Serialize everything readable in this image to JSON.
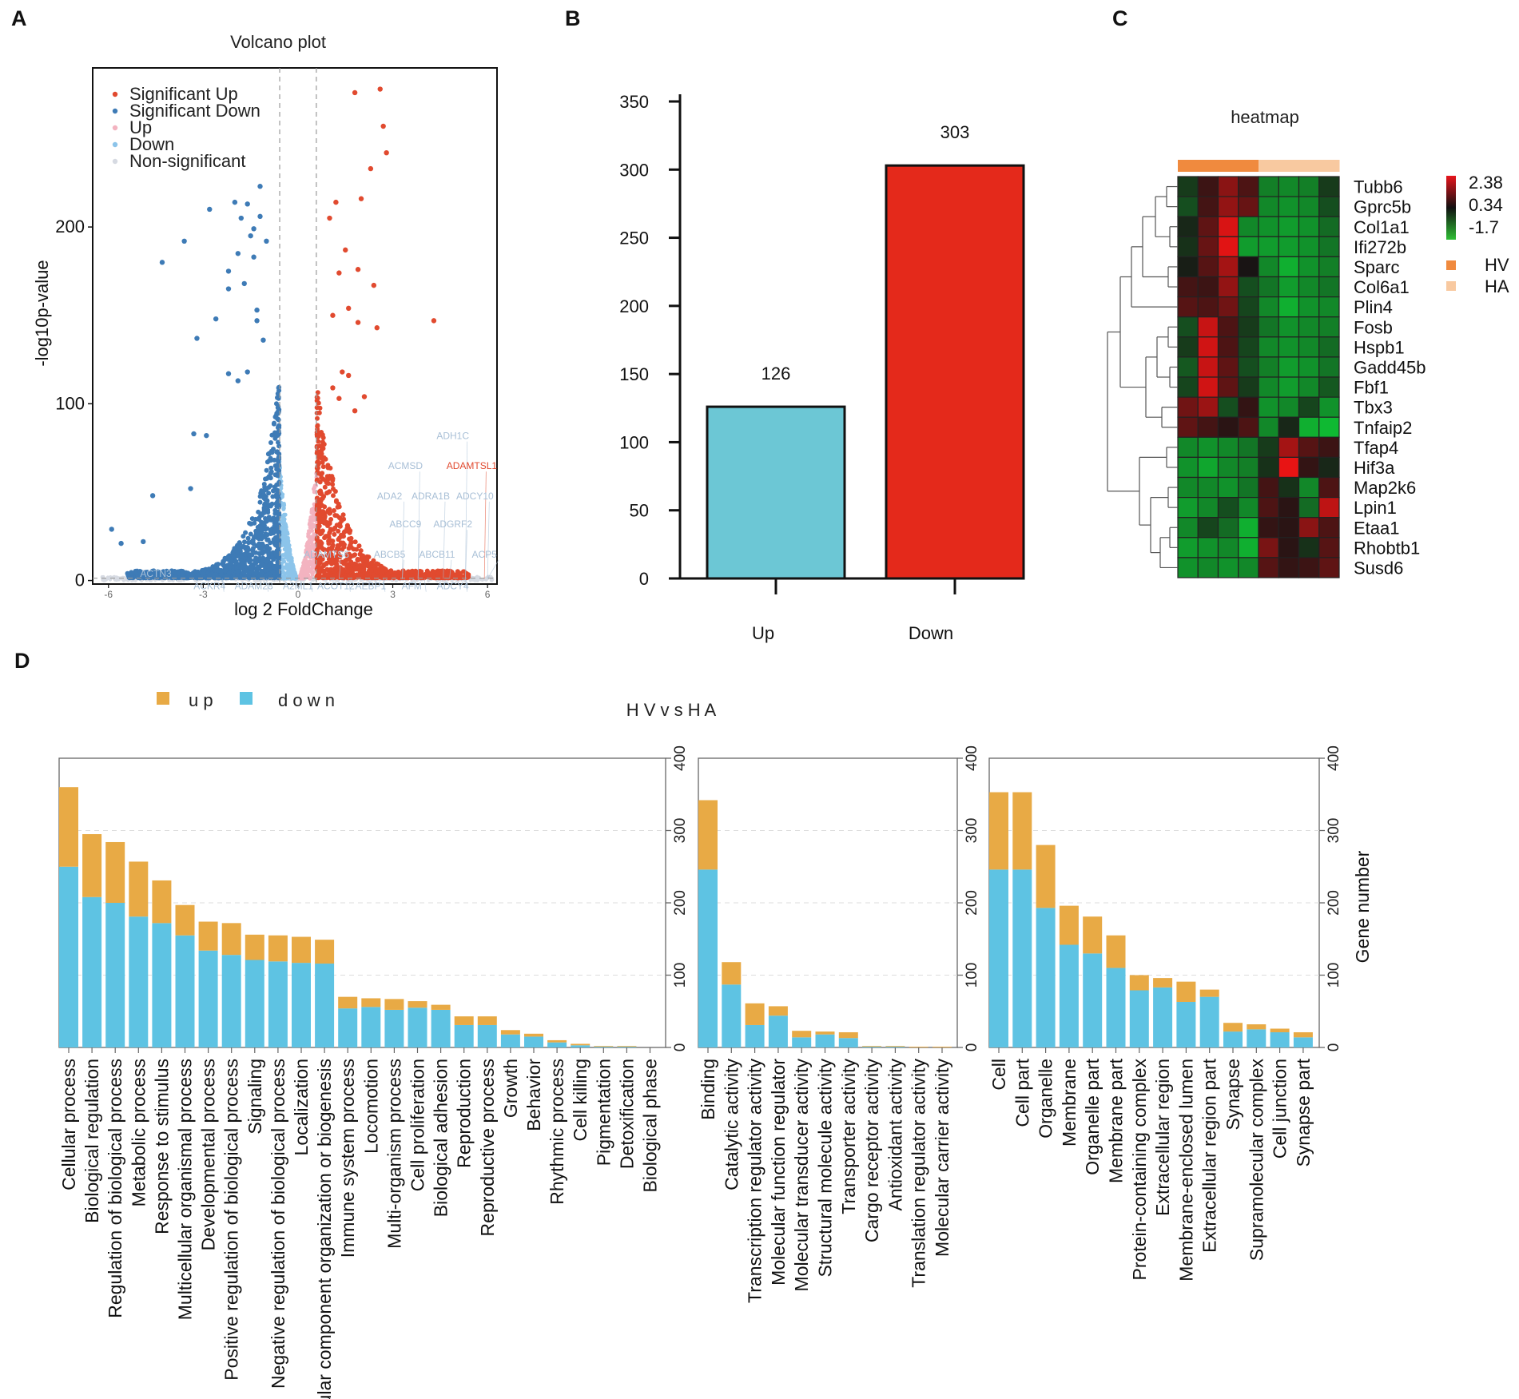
{
  "panels": {
    "a_label": "A",
    "b_label": "B",
    "c_label": "C",
    "d_label": "D"
  },
  "colors": {
    "sig_up": "#e14a2f",
    "sig_down": "#3e7bb6",
    "up": "#f3b3c0",
    "down": "#8cc4ea",
    "nonsig": "#d6dae2",
    "bar_up": "#6cc7d5",
    "bar_down": "#e4291b",
    "go_up": "#e8aa45",
    "go_down": "#5ec3e3",
    "hv": "#f08a3e",
    "ha": "#f8c9a0"
  },
  "chart_data": [
    {
      "id": "volcano",
      "type": "scatter",
      "title": "Volcano plot",
      "xlabel": "log 2 FoldChange",
      "ylabel": "-log10p-value",
      "xlim": [
        -6.5,
        6.3
      ],
      "ylim": [
        -2,
        290
      ],
      "xticks": [
        -6,
        -3,
        0,
        3,
        6
      ],
      "yticks": [
        0,
        100,
        200
      ],
      "legend": [
        "Significant Up",
        "Significant Down",
        "Up",
        "Down",
        "Non-significant"
      ],
      "threshold_x": [
        -0.58,
        0.58
      ],
      "threshold_y": 1.3,
      "gene_labels": [
        {
          "name": "ADH1C",
          "x": 4.9,
          "y": 80,
          "color": "#a8bfd6"
        },
        {
          "name": "ADAMTSL1",
          "x": 5.5,
          "y": 63,
          "color": "#e14a2f"
        },
        {
          "name": "ACMSD",
          "x": 3.4,
          "y": 63,
          "color": "#a8bfd6"
        },
        {
          "name": "ADRA1B",
          "x": 4.2,
          "y": 46,
          "color": "#a8bfd6"
        },
        {
          "name": "ADCY10",
          "x": 5.6,
          "y": 46,
          "color": "#a8bfd6"
        },
        {
          "name": "ADA2",
          "x": 2.9,
          "y": 46,
          "color": "#a8bfd6"
        },
        {
          "name": "ABCC9",
          "x": 3.4,
          "y": 30,
          "color": "#a8bfd6"
        },
        {
          "name": "ADGRF2",
          "x": 4.9,
          "y": 30,
          "color": "#a8bfd6"
        },
        {
          "name": "ADAMTS6",
          "x": 0.9,
          "y": 13,
          "color": "#a8bfd6"
        },
        {
          "name": "ABCB5",
          "x": 2.9,
          "y": 13,
          "color": "#a8bfd6"
        },
        {
          "name": "ABCB11",
          "x": 4.4,
          "y": 13,
          "color": "#a8bfd6"
        },
        {
          "name": "ACP5",
          "x": 5.9,
          "y": 13,
          "color": "#a8bfd6"
        },
        {
          "name": "ACKR4",
          "x": -2.8,
          "y": -5,
          "color": "#a8bfd6"
        },
        {
          "name": "ADAM28",
          "x": -1.4,
          "y": -5,
          "color": "#a8bfd6"
        },
        {
          "name": "A2ML1",
          "x": 0.0,
          "y": -5,
          "color": "#a8bfd6"
        },
        {
          "name": "ACOT12",
          "x": 1.2,
          "y": -5,
          "color": "#a8bfd6"
        },
        {
          "name": "AEBP1",
          "x": 2.3,
          "y": -5,
          "color": "#a8bfd6"
        },
        {
          "name": "AFM",
          "x": 3.6,
          "y": -5,
          "color": "#a8bfd6"
        },
        {
          "name": "ADCY4",
          "x": 4.9,
          "y": -5,
          "color": "#a8bfd6"
        },
        {
          "name": "ACTN3",
          "x": -4.5,
          "y": 2,
          "color": "#a8bfd6"
        }
      ],
      "highlight_points": {
        "up": [
          [
            1.8,
            276
          ],
          [
            2.6,
            278
          ],
          [
            2.7,
            257
          ],
          [
            2.8,
            242
          ],
          [
            2.0,
            216
          ],
          [
            2.3,
            233
          ],
          [
            1.0,
            205
          ],
          [
            1.2,
            214
          ],
          [
            1.5,
            187
          ],
          [
            1.9,
            176
          ],
          [
            1.3,
            174
          ],
          [
            2.4,
            167
          ],
          [
            1.6,
            154
          ],
          [
            1.1,
            150
          ],
          [
            1.9,
            146
          ],
          [
            2.5,
            143
          ],
          [
            4.3,
            147
          ],
          [
            1.4,
            118
          ],
          [
            1.6,
            116
          ],
          [
            1.1,
            109
          ],
          [
            1.3,
            103
          ],
          [
            2.1,
            104
          ],
          [
            1.8,
            96
          ]
        ],
        "down": [
          [
            -1.2,
            223
          ],
          [
            -2.0,
            214
          ],
          [
            -1.6,
            213
          ],
          [
            -1.2,
            206
          ],
          [
            -1.4,
            199
          ],
          [
            -1.8,
            205
          ],
          [
            -1.5,
            195
          ],
          [
            -1.0,
            192
          ],
          [
            -2.8,
            210
          ],
          [
            -1.9,
            185
          ],
          [
            -1.4,
            183
          ],
          [
            -3.6,
            192
          ],
          [
            -4.3,
            180
          ],
          [
            -2.2,
            175
          ],
          [
            -1.7,
            168
          ],
          [
            -2.2,
            165
          ],
          [
            -1.3,
            153
          ],
          [
            -1.3,
            147
          ],
          [
            -2.6,
            148
          ],
          [
            -1.1,
            136
          ],
          [
            -3.2,
            137
          ],
          [
            -1.6,
            118
          ],
          [
            -2.2,
            117
          ],
          [
            -1.9,
            113
          ],
          [
            -3.3,
            83
          ],
          [
            -2.9,
            82
          ],
          [
            -4.6,
            48
          ],
          [
            -3.4,
            52
          ],
          [
            -5.9,
            29
          ],
          [
            -5.6,
            21
          ],
          [
            -4.9,
            22
          ]
        ]
      }
    },
    {
      "id": "deg_bar",
      "type": "bar",
      "categories": [
        "Up",
        "Down"
      ],
      "values": [
        126,
        303
      ],
      "value_labels": [
        "126",
        "303"
      ],
      "ylim": [
        0,
        350
      ],
      "yticks": [
        "350",
        "300",
        "250",
        "200",
        "150",
        "100",
        "50",
        "0"
      ],
      "xlabel": "",
      "ylabel": ""
    },
    {
      "id": "heatmap",
      "type": "heatmap",
      "title": "heatmap",
      "rows": [
        "Tubb6",
        "Gprc5b",
        "Col1a1",
        "Ifi272b",
        "Sparc",
        "Col6a1",
        "Plin4",
        "Fosb",
        "Hspb1",
        "Gadd45b",
        "Fbf1",
        "Tbx3",
        "Tnfaip2",
        "Tfap4",
        "Hif3a",
        "Map2k6",
        "Lpin1",
        "Etaa1",
        "Rhobtb1",
        "Susd6"
      ],
      "groups": [
        "HV",
        "HV",
        "HV",
        "HV",
        "HA",
        "HA",
        "HA",
        "HA"
      ],
      "scale_labels": [
        "2.38",
        "0.34",
        "-1.7"
      ],
      "scale_range": [
        -1.7,
        2.38
      ],
      "legend_groups": [
        "HV",
        "HA"
      ],
      "values": [
        [
          -0.4,
          0.4,
          1.3,
          0.6,
          -1.1,
          -1.2,
          -1.1,
          -0.4
        ],
        [
          -0.6,
          0.5,
          1.4,
          0.9,
          -1.2,
          -1.3,
          -1.2,
          -0.6
        ],
        [
          -0.2,
          0.8,
          2.2,
          -1.2,
          -1.3,
          -1.4,
          -1.3,
          -0.9
        ],
        [
          -0.3,
          0.9,
          2.3,
          -1.4,
          -1.4,
          -1.4,
          -1.3,
          -1.0
        ],
        [
          -0.1,
          0.7,
          1.6,
          0.0,
          -1.2,
          -1.6,
          -1.3,
          -1.1
        ],
        [
          0.5,
          0.4,
          1.4,
          -0.6,
          -1.0,
          -1.4,
          -1.2,
          -1.0
        ],
        [
          0.7,
          0.6,
          1.0,
          -0.5,
          -1.2,
          -1.6,
          -1.3,
          -1.2
        ],
        [
          -0.6,
          2.0,
          0.6,
          -0.4,
          -1.0,
          -1.3,
          -1.2,
          -1.1
        ],
        [
          -0.4,
          2.1,
          0.6,
          -0.5,
          -1.2,
          -1.3,
          -1.2,
          -0.9
        ],
        [
          -0.7,
          2.0,
          0.8,
          -0.6,
          -1.1,
          -1.4,
          -1.3,
          -1.0
        ],
        [
          -0.5,
          2.1,
          0.8,
          -0.4,
          -1.2,
          -1.4,
          -1.2,
          -0.7
        ],
        [
          1.0,
          1.5,
          -0.6,
          0.3,
          -1.3,
          -1.2,
          -0.5,
          -1.3
        ],
        [
          0.8,
          0.5,
          0.2,
          0.6,
          -1.2,
          -0.2,
          -1.6,
          -1.7
        ],
        [
          -1.2,
          -1.3,
          -1.2,
          -1.0,
          -0.4,
          1.6,
          0.7,
          0.4
        ],
        [
          -1.3,
          -1.5,
          -1.2,
          -1.1,
          -0.3,
          2.38,
          0.3,
          -0.2
        ],
        [
          -1.2,
          -1.2,
          -1.3,
          -1.0,
          0.5,
          -0.3,
          -1.2,
          0.6
        ],
        [
          -1.4,
          -1.2,
          -0.6,
          -1.2,
          0.6,
          0.2,
          -0.9,
          1.9
        ],
        [
          -1.2,
          -0.5,
          -0.9,
          -1.6,
          0.3,
          0.2,
          1.3,
          0.6
        ],
        [
          -1.4,
          -1.3,
          -1.2,
          -1.6,
          1.1,
          0.2,
          -0.3,
          0.7
        ],
        [
          -1.3,
          -1.2,
          -1.3,
          -1.2,
          0.7,
          0.3,
          0.4,
          0.8
        ]
      ]
    },
    {
      "id": "go_bp",
      "type": "bar",
      "stacked": true,
      "group": "Biological process",
      "ylim": [
        0,
        400
      ],
      "yticks": [
        "400",
        "300",
        "200",
        "100",
        "0"
      ],
      "categories": [
        "Cellular process",
        "Biological regulation",
        "Regulation of biological process",
        "Metabolic process",
        "Response to stimulus",
        "Multicellular organismal process",
        "Developmental process",
        "Positive regulation of biological process",
        "Signaling",
        "Negative regulation of biological process",
        "Localization",
        "Cellular component organization or biogenesis",
        "Immune system process",
        "Locomotion",
        "Multi-organism process",
        "Cell proliferation",
        "Biological adhesion",
        "Reproduction",
        "Reproductive process",
        "Growth",
        "Behavior",
        "Rhythmic process",
        "Cell killing",
        "Pigmentation",
        "Detoxification",
        "Biological phase"
      ],
      "series": [
        {
          "name": "down",
          "values": [
            250,
            208,
            200,
            181,
            172,
            155,
            134,
            128,
            121,
            119,
            117,
            116,
            54,
            56,
            52,
            55,
            52,
            31,
            31,
            18,
            15,
            7,
            3,
            1,
            1,
            0
          ]
        },
        {
          "name": "up",
          "values": [
            110,
            87,
            84,
            76,
            59,
            42,
            40,
            44,
            35,
            36,
            36,
            33,
            16,
            12,
            15,
            9,
            7,
            12,
            12,
            6,
            4,
            3,
            2,
            1,
            1,
            0
          ]
        }
      ]
    },
    {
      "id": "go_mf",
      "type": "bar",
      "stacked": true,
      "group": "Molecular function",
      "ylim": [
        0,
        400
      ],
      "yticks": [
        "400",
        "300",
        "200",
        "100",
        "0"
      ],
      "categories": [
        "Binding",
        "Catalytic activity",
        "Transcription regulator activity",
        "Molecular function regulator",
        "Molecular transducer activity",
        "Structural molecule activity",
        "Transporter activity",
        "Cargo receptor activity",
        "Antioxidant activity",
        "Translation regulator activity",
        "Molecular carrier activity"
      ],
      "series": [
        {
          "name": "down",
          "values": [
            246,
            87,
            31,
            44,
            14,
            18,
            13,
            1,
            1,
            0,
            0
          ]
        },
        {
          "name": "up",
          "values": [
            96,
            31,
            30,
            13,
            9,
            4,
            8,
            1,
            1,
            1,
            1
          ]
        }
      ]
    },
    {
      "id": "go_cc",
      "type": "bar",
      "stacked": true,
      "group": "Cellular component",
      "ylim": [
        0,
        400
      ],
      "yticks": [
        "400",
        "300",
        "200",
        "100",
        "0"
      ],
      "ylabel": "Gene number",
      "categories": [
        "Cell",
        "Cell part",
        "Organelle",
        "Membrane",
        "Organelle part",
        "Membrane part",
        "Protein-containing complex",
        "Extracellular region",
        "Membrane-enclosed lumen",
        "Extracellular region part",
        "Synapse",
        "Supramolecular complex",
        "Cell junction",
        "Synapse part"
      ],
      "series": [
        {
          "name": "down",
          "values": [
            246,
            246,
            193,
            142,
            130,
            110,
            79,
            83,
            63,
            70,
            22,
            25,
            21,
            14
          ]
        },
        {
          "name": "up",
          "values": [
            107,
            107,
            87,
            54,
            51,
            45,
            21,
            13,
            28,
            10,
            12,
            7,
            5,
            7
          ]
        }
      ]
    }
  ],
  "go_header": {
    "legend_up": "u p",
    "legend_down": "d o w n",
    "title": "H V  v s  H A"
  }
}
